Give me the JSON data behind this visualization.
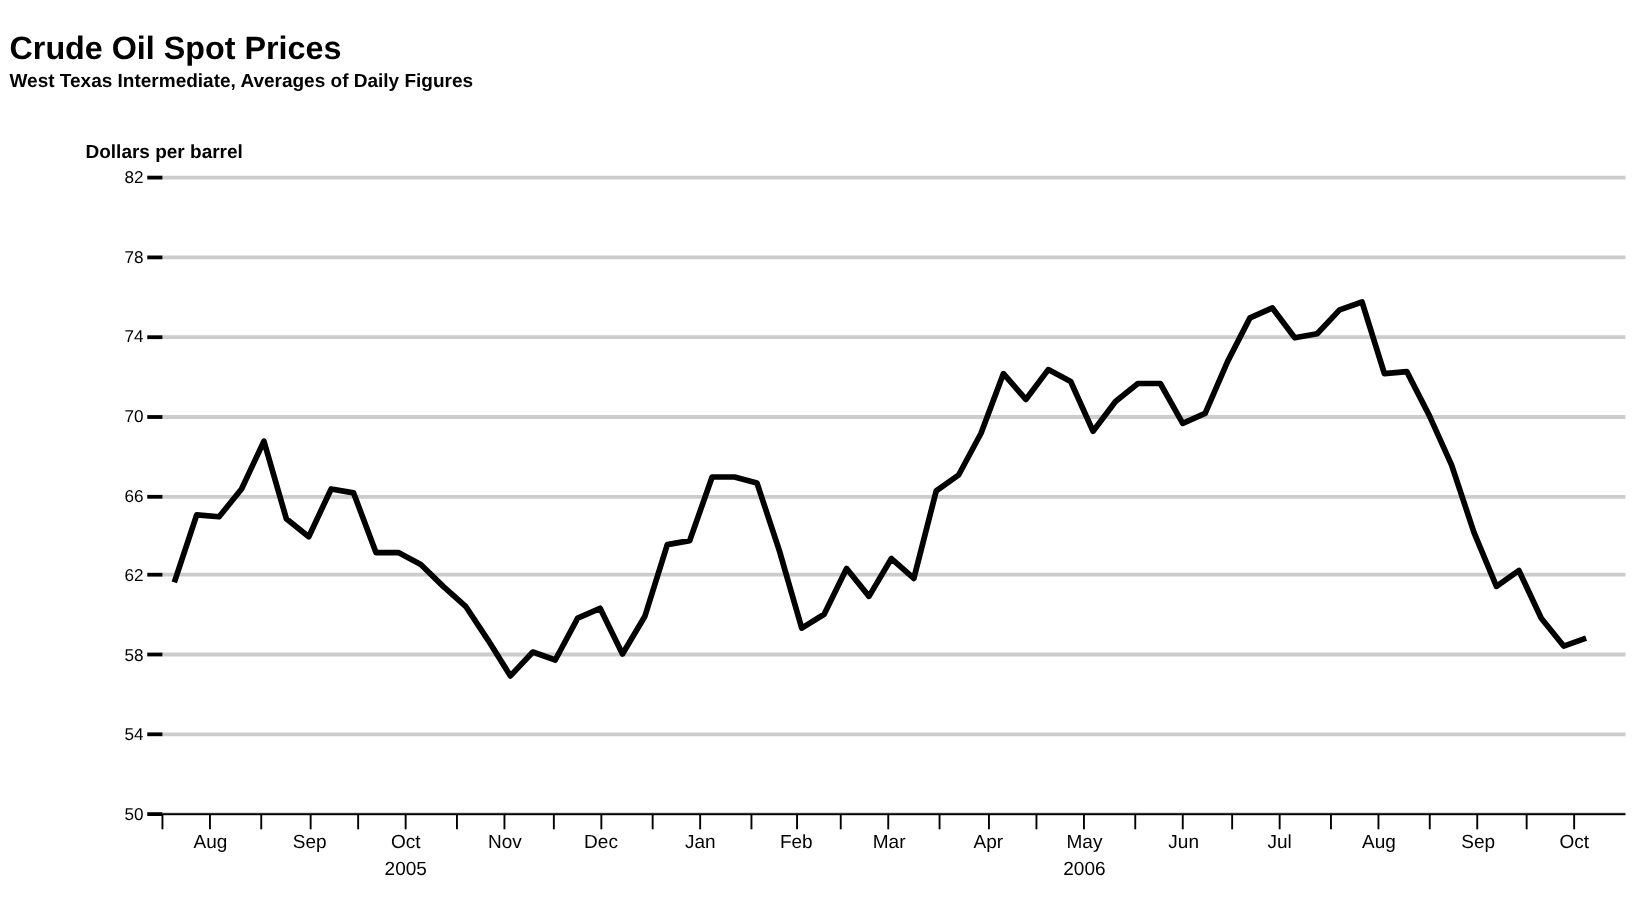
{
  "chart_data": {
    "type": "line",
    "title": "Crude Oil Spot Prices",
    "subtitle": "West Texas Intermediate, Averages of Daily Figures",
    "ylabel": "Dollars per barrel",
    "x": [
      "2005-08-05",
      "2005-08-12",
      "2005-08-19",
      "2005-08-26",
      "2005-09-02",
      "2005-09-09",
      "2005-09-16",
      "2005-09-23",
      "2005-09-30",
      "2005-10-07",
      "2005-10-14",
      "2005-10-21",
      "2005-10-28",
      "2005-11-04",
      "2005-11-11",
      "2005-11-18",
      "2005-11-25",
      "2005-12-02",
      "2005-12-09",
      "2005-12-16",
      "2005-12-23",
      "2005-12-30",
      "2006-01-06",
      "2006-01-13",
      "2006-01-20",
      "2006-01-27",
      "2006-02-03",
      "2006-02-10",
      "2006-02-17",
      "2006-02-24",
      "2006-03-03",
      "2006-03-10",
      "2006-03-17",
      "2006-03-24",
      "2006-03-31",
      "2006-04-07",
      "2006-04-14",
      "2006-04-21",
      "2006-04-28",
      "2006-05-05",
      "2006-05-12",
      "2006-05-19",
      "2006-05-26",
      "2006-06-02",
      "2006-06-09",
      "2006-06-16",
      "2006-06-23",
      "2006-06-30",
      "2006-07-07",
      "2006-07-14",
      "2006-07-21",
      "2006-07-28",
      "2006-08-04",
      "2006-08-11",
      "2006-08-18",
      "2006-08-25",
      "2006-09-01",
      "2006-09-08",
      "2006-09-15",
      "2006-09-22",
      "2006-09-29",
      "2006-10-06",
      "2006-10-13",
      "2006-10-20"
    ],
    "series": [
      {
        "color": "#000000",
        "values": [
          61.6,
          65.0,
          64.9,
          66.3,
          68.7,
          64.8,
          63.9,
          66.3,
          66.1,
          63.1,
          63.1,
          62.5,
          61.4,
          60.4,
          58.7,
          56.9,
          58.1,
          57.7,
          59.8,
          60.3,
          58.0,
          59.9,
          63.5,
          63.7,
          66.9,
          66.9,
          66.6,
          63.2,
          59.3,
          60.0,
          62.3,
          60.9,
          62.8,
          61.8,
          66.2,
          67.0,
          69.1,
          72.1,
          70.8,
          72.3,
          71.7,
          69.2,
          70.7,
          71.6,
          71.6,
          69.6,
          70.1,
          72.7,
          74.9,
          75.4,
          73.9,
          74.1,
          75.3,
          75.7,
          72.1,
          72.2,
          70.0,
          67.5,
          64.1,
          61.4,
          62.2,
          59.8,
          58.4,
          58.8
        ]
      }
    ],
    "xlim": [
      "2005-08-01",
      "2006-11-01"
    ],
    "xticks": [
      {
        "value": "2005-08-01",
        "label": null
      },
      {
        "value": "2005-08-16",
        "label": "Aug"
      },
      {
        "value": "2005-09-01",
        "label": null
      },
      {
        "value": "2005-09-16",
        "label": "Sep"
      },
      {
        "value": "2005-10-01",
        "label": null
      },
      {
        "value": "2005-10-16",
        "label": "Oct\n2005"
      },
      {
        "value": "2005-11-01",
        "label": null
      },
      {
        "value": "2005-11-16",
        "label": "Nov"
      },
      {
        "value": "2005-12-01",
        "label": null
      },
      {
        "value": "2005-12-16",
        "label": "Dec"
      },
      {
        "value": "2006-01-01",
        "label": null
      },
      {
        "value": "2006-01-16",
        "label": "Jan"
      },
      {
        "value": "2006-02-01",
        "label": null
      },
      {
        "value": "2006-02-15",
        "label": "Feb"
      },
      {
        "value": "2006-03-01",
        "label": null
      },
      {
        "value": "2006-03-16",
        "label": "Mar"
      },
      {
        "value": "2006-04-01",
        "label": null
      },
      {
        "value": "2006-04-16",
        "label": "Apr"
      },
      {
        "value": "2006-05-01",
        "label": null
      },
      {
        "value": "2006-05-16",
        "label": "May\n2006"
      },
      {
        "value": "2006-06-01",
        "label": null
      },
      {
        "value": "2006-06-16",
        "label": "Jun"
      },
      {
        "value": "2006-07-01",
        "label": null
      },
      {
        "value": "2006-07-16",
        "label": "Jul"
      },
      {
        "value": "2006-08-01",
        "label": null
      },
      {
        "value": "2006-08-16",
        "label": "Aug"
      },
      {
        "value": "2006-09-01",
        "label": null
      },
      {
        "value": "2006-09-16",
        "label": "Sep"
      },
      {
        "value": "2006-10-01",
        "label": null
      },
      {
        "value": "2006-10-16",
        "label": "Oct"
      }
    ],
    "ylim": [
      50,
      82
    ],
    "yticks": [
      50,
      54,
      58,
      62,
      66,
      70,
      74,
      78,
      82
    ],
    "grid": "y",
    "marker": "none",
    "line_style": "solid"
  }
}
